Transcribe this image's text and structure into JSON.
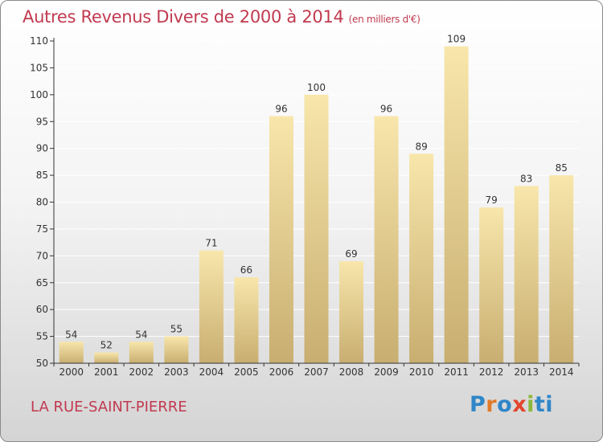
{
  "header": {
    "title": "Autres Revenus Divers de 2000 à 2014",
    "unit": "(en milliers d'€)"
  },
  "footer": {
    "place": "LA RUE-SAINT-PIERRE"
  },
  "logo": {
    "text": "Proxiti",
    "colors": [
      "#2f86c8",
      "#e07a2a",
      "#2f86c8",
      "#e2452f",
      "#8ab83a",
      "#2f86c8"
    ]
  },
  "colors": {
    "title": "#c13a50",
    "bar_light": "#f7e3a6",
    "bar_dark": "#c9b073",
    "grid": "#ffffff",
    "axis": "#333333"
  },
  "chart_data": {
    "type": "bar",
    "title": "Autres Revenus Divers de 2000 à 2014",
    "subtitle": "(en milliers d'€)",
    "xlabel": "",
    "ylabel": "",
    "categories": [
      "2000",
      "2001",
      "2002",
      "2003",
      "2004",
      "2005",
      "2006",
      "2007",
      "2008",
      "2009",
      "2010",
      "2011",
      "2012",
      "2013",
      "2014"
    ],
    "values": [
      54,
      52,
      54,
      55,
      71,
      66,
      96,
      100,
      69,
      96,
      89,
      109,
      79,
      83,
      85
    ],
    "ylim": [
      50,
      110
    ],
    "yticks": [
      50,
      55,
      60,
      65,
      70,
      75,
      80,
      85,
      90,
      95,
      100,
      105,
      110
    ],
    "grid": true,
    "data_labels": true
  }
}
